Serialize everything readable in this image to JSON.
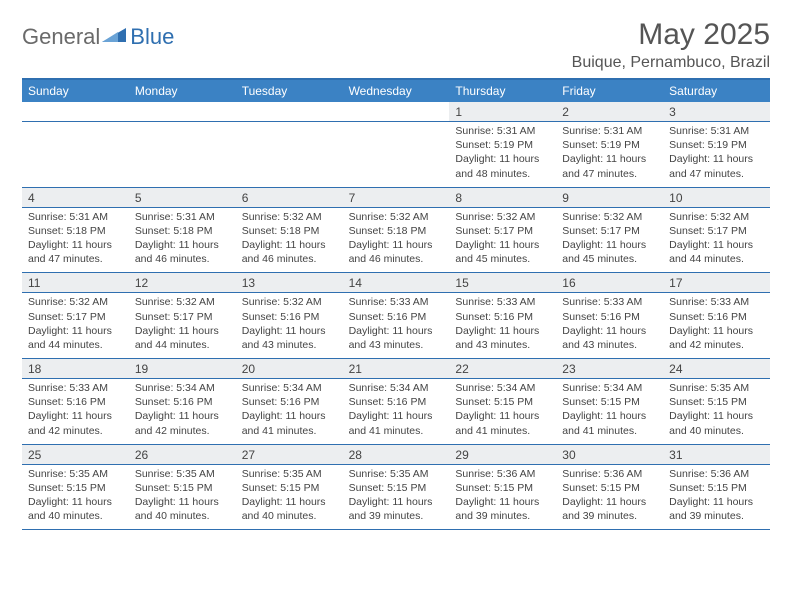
{
  "brand": {
    "part1": "General",
    "part2": "Blue"
  },
  "title": "May 2025",
  "location": "Buique, Pernambuco, Brazil",
  "colors": {
    "header_bg": "#3b82c4",
    "border": "#2f6fb0",
    "daynum_bg": "#eceef0",
    "text": "#444444"
  },
  "weekdays": [
    "Sunday",
    "Monday",
    "Tuesday",
    "Wednesday",
    "Thursday",
    "Friday",
    "Saturday"
  ],
  "weeks": [
    [
      null,
      null,
      null,
      null,
      {
        "n": "1",
        "sr": "5:31 AM",
        "ss": "5:19 PM",
        "dh": "11",
        "dm": "48"
      },
      {
        "n": "2",
        "sr": "5:31 AM",
        "ss": "5:19 PM",
        "dh": "11",
        "dm": "47"
      },
      {
        "n": "3",
        "sr": "5:31 AM",
        "ss": "5:19 PM",
        "dh": "11",
        "dm": "47"
      }
    ],
    [
      {
        "n": "4",
        "sr": "5:31 AM",
        "ss": "5:18 PM",
        "dh": "11",
        "dm": "47"
      },
      {
        "n": "5",
        "sr": "5:31 AM",
        "ss": "5:18 PM",
        "dh": "11",
        "dm": "46"
      },
      {
        "n": "6",
        "sr": "5:32 AM",
        "ss": "5:18 PM",
        "dh": "11",
        "dm": "46"
      },
      {
        "n": "7",
        "sr": "5:32 AM",
        "ss": "5:18 PM",
        "dh": "11",
        "dm": "46"
      },
      {
        "n": "8",
        "sr": "5:32 AM",
        "ss": "5:17 PM",
        "dh": "11",
        "dm": "45"
      },
      {
        "n": "9",
        "sr": "5:32 AM",
        "ss": "5:17 PM",
        "dh": "11",
        "dm": "45"
      },
      {
        "n": "10",
        "sr": "5:32 AM",
        "ss": "5:17 PM",
        "dh": "11",
        "dm": "44"
      }
    ],
    [
      {
        "n": "11",
        "sr": "5:32 AM",
        "ss": "5:17 PM",
        "dh": "11",
        "dm": "44"
      },
      {
        "n": "12",
        "sr": "5:32 AM",
        "ss": "5:17 PM",
        "dh": "11",
        "dm": "44"
      },
      {
        "n": "13",
        "sr": "5:32 AM",
        "ss": "5:16 PM",
        "dh": "11",
        "dm": "43"
      },
      {
        "n": "14",
        "sr": "5:33 AM",
        "ss": "5:16 PM",
        "dh": "11",
        "dm": "43"
      },
      {
        "n": "15",
        "sr": "5:33 AM",
        "ss": "5:16 PM",
        "dh": "11",
        "dm": "43"
      },
      {
        "n": "16",
        "sr": "5:33 AM",
        "ss": "5:16 PM",
        "dh": "11",
        "dm": "43"
      },
      {
        "n": "17",
        "sr": "5:33 AM",
        "ss": "5:16 PM",
        "dh": "11",
        "dm": "42"
      }
    ],
    [
      {
        "n": "18",
        "sr": "5:33 AM",
        "ss": "5:16 PM",
        "dh": "11",
        "dm": "42"
      },
      {
        "n": "19",
        "sr": "5:34 AM",
        "ss": "5:16 PM",
        "dh": "11",
        "dm": "42"
      },
      {
        "n": "20",
        "sr": "5:34 AM",
        "ss": "5:16 PM",
        "dh": "11",
        "dm": "41"
      },
      {
        "n": "21",
        "sr": "5:34 AM",
        "ss": "5:16 PM",
        "dh": "11",
        "dm": "41"
      },
      {
        "n": "22",
        "sr": "5:34 AM",
        "ss": "5:15 PM",
        "dh": "11",
        "dm": "41"
      },
      {
        "n": "23",
        "sr": "5:34 AM",
        "ss": "5:15 PM",
        "dh": "11",
        "dm": "41"
      },
      {
        "n": "24",
        "sr": "5:35 AM",
        "ss": "5:15 PM",
        "dh": "11",
        "dm": "40"
      }
    ],
    [
      {
        "n": "25",
        "sr": "5:35 AM",
        "ss": "5:15 PM",
        "dh": "11",
        "dm": "40"
      },
      {
        "n": "26",
        "sr": "5:35 AM",
        "ss": "5:15 PM",
        "dh": "11",
        "dm": "40"
      },
      {
        "n": "27",
        "sr": "5:35 AM",
        "ss": "5:15 PM",
        "dh": "11",
        "dm": "40"
      },
      {
        "n": "28",
        "sr": "5:35 AM",
        "ss": "5:15 PM",
        "dh": "11",
        "dm": "39"
      },
      {
        "n": "29",
        "sr": "5:36 AM",
        "ss": "5:15 PM",
        "dh": "11",
        "dm": "39"
      },
      {
        "n": "30",
        "sr": "5:36 AM",
        "ss": "5:15 PM",
        "dh": "11",
        "dm": "39"
      },
      {
        "n": "31",
        "sr": "5:36 AM",
        "ss": "5:15 PM",
        "dh": "11",
        "dm": "39"
      }
    ]
  ],
  "labels": {
    "sunrise": "Sunrise:",
    "sunset": "Sunset:",
    "daylight": "Daylight:",
    "hours": "hours",
    "and": "and",
    "minutes": "minutes."
  }
}
